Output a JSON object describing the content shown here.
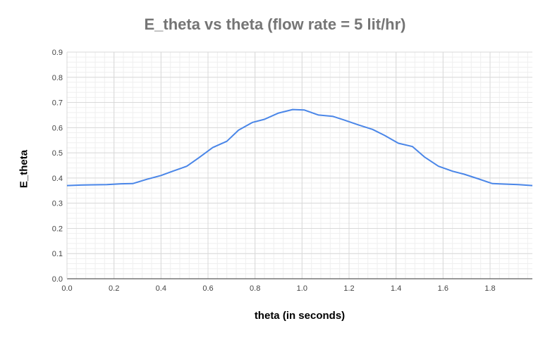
{
  "chart_data": {
    "type": "line",
    "title": "E_theta vs theta (flow rate = 5 lit/hr)",
    "xlabel": "theta (in seconds)",
    "ylabel": "E_theta",
    "xlim": [
      0,
      1.98
    ],
    "ylim": [
      0,
      0.9
    ],
    "x_ticks": [
      "0.0",
      "0.2",
      "0.4",
      "0.6",
      "0.8",
      "1.0",
      "1.2",
      "1.4",
      "1.6",
      "1.8"
    ],
    "y_ticks": [
      "0.0",
      "0.1",
      "0.2",
      "0.3",
      "0.4",
      "0.5",
      "0.6",
      "0.7",
      "0.8",
      "0.9"
    ],
    "grid": true,
    "colors": {
      "line": "#4a86e8",
      "grid_major": "#d9d9d9",
      "grid_minor": "#efefef",
      "axis": "#333333"
    },
    "series": [
      {
        "x": [
          0.0,
          0.06,
          0.17,
          0.23,
          0.28,
          0.34,
          0.4,
          0.45,
          0.51,
          0.56,
          0.62,
          0.68,
          0.73,
          0.79,
          0.84,
          0.9,
          0.96,
          1.01,
          1.07,
          1.13,
          1.18,
          1.24,
          1.3,
          1.35,
          1.41,
          1.47,
          1.52,
          1.58,
          1.64,
          1.69,
          1.75,
          1.81,
          1.86,
          1.92,
          1.98
        ],
        "values": [
          0.37,
          0.372,
          0.374,
          0.377,
          0.378,
          0.395,
          0.41,
          0.427,
          0.447,
          0.48,
          0.521,
          0.546,
          0.59,
          0.621,
          0.633,
          0.658,
          0.672,
          0.67,
          0.65,
          0.645,
          0.63,
          0.611,
          0.593,
          0.57,
          0.538,
          0.525,
          0.484,
          0.447,
          0.427,
          0.415,
          0.397,
          0.378,
          0.376,
          0.374,
          0.37
        ]
      }
    ]
  }
}
